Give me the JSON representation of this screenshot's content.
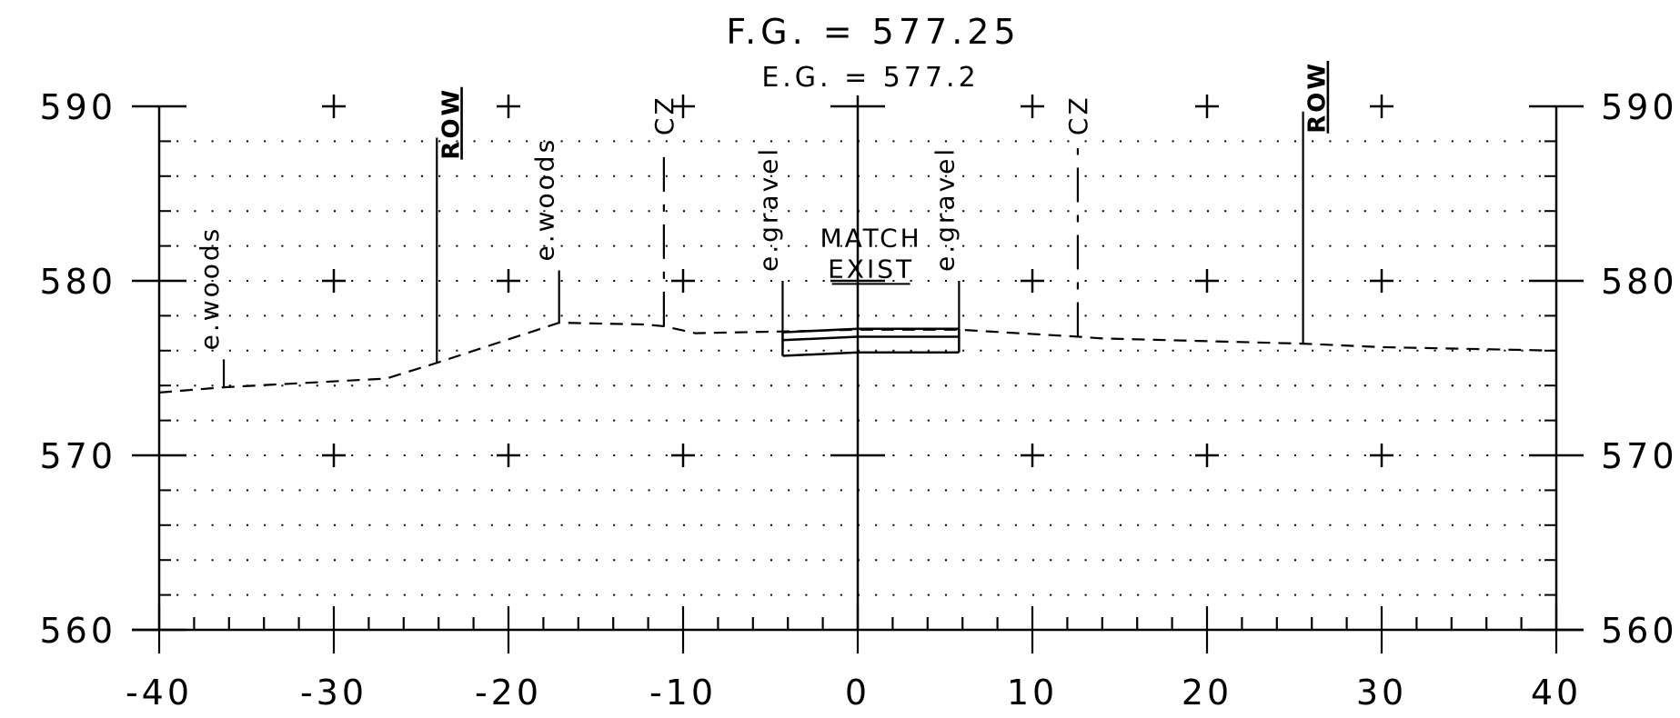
{
  "header": {
    "finished_grade": "F.G. = 577.25",
    "existing_grade": "E.G. = 577.2"
  },
  "chart_data": {
    "type": "line",
    "xlim": [
      -40,
      40
    ],
    "ylim": [
      560,
      590
    ],
    "x_ticks": [
      -40,
      -30,
      -20,
      -10,
      0,
      10,
      20,
      30,
      40
    ],
    "x_tick_labels": [
      "-40",
      "-30",
      "-20",
      "-10",
      "0",
      "10",
      "20",
      "30",
      "40"
    ],
    "y_ticks": [
      560,
      570,
      580,
      590
    ],
    "y_tick_labels": [
      "560",
      "570",
      "580",
      "590"
    ],
    "grid": true,
    "series": [
      {
        "style": "dashed",
        "x": [
          -40,
          -36.3,
          -27,
          -24.1,
          -17.1,
          -12.2,
          -11.1,
          -9.3,
          -4.3,
          0,
          5.8,
          12.6,
          14,
          25.5,
          30,
          40
        ],
        "y": [
          573.6,
          573.9,
          574.4,
          575.3,
          577.6,
          577.5,
          577.4,
          577.0,
          577.1,
          577.2,
          577.2,
          576.8,
          576.7,
          576.4,
          576.2,
          576.0
        ]
      }
    ],
    "pavement": {
      "x_left": -4.3,
      "x_right": 5.8,
      "top": [
        577.05,
        577.25,
        577.25
      ],
      "middle": [
        576.6,
        576.8,
        576.8
      ],
      "bottom": [
        575.7,
        575.9,
        575.9
      ]
    },
    "annotations": [
      {
        "text": "e.woods",
        "x": -36.3,
        "ground": 573.9,
        "top": 575.5,
        "type": "solid"
      },
      {
        "text": "ROW",
        "x": -24.1,
        "ground": 575.3,
        "top": 588.2,
        "type": "row"
      },
      {
        "text": "e.woods",
        "x": -17.1,
        "ground": 577.6,
        "top": 580.6,
        "type": "solid"
      },
      {
        "text": "CZ",
        "x": -11.1,
        "ground": 577.4,
        "top": 587.6,
        "type": "dashed"
      },
      {
        "text": "e.gravel",
        "x": -4.3,
        "ground": 577.1,
        "top": 580,
        "type": "solid"
      },
      {
        "text": "e.gravel",
        "x": 5.8,
        "ground": 577.2,
        "top": 580,
        "type": "solid"
      },
      {
        "text": "CZ",
        "x": 12.6,
        "ground": 576.8,
        "top": 587.6,
        "type": "dashed"
      },
      {
        "text": "ROW",
        "x": 25.5,
        "ground": 576.4,
        "top": 589.7,
        "type": "row"
      }
    ],
    "note": {
      "line1": "MATCH",
      "line2": "EXIST",
      "x": 0.5,
      "y": 580.5
    }
  }
}
